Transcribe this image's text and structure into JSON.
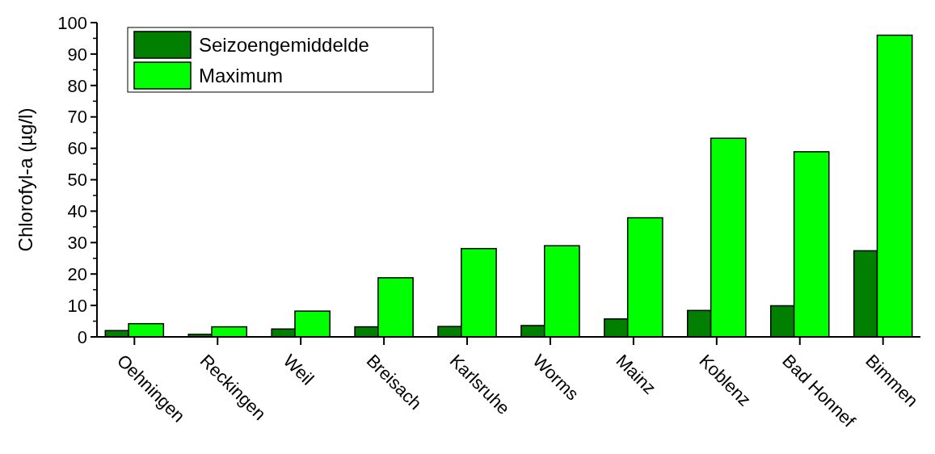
{
  "chart_data": {
    "type": "bar",
    "ylabel": "Chlorofyl-a (µg/l)",
    "categories": [
      "Oehningen",
      "Reckingen",
      "Weil",
      "Breisach",
      "Karlsruhe",
      "Worms",
      "Mainz",
      "Koblenz",
      "Bad Honnef",
      "Bimmen"
    ],
    "series": [
      {
        "name": "Seizoengemiddelde",
        "color": "#007f00",
        "values": [
          2.0,
          0.8,
          2.5,
          3.2,
          3.3,
          3.6,
          5.7,
          8.4,
          9.9,
          27.4
        ]
      },
      {
        "name": "Maximum",
        "color": "#00ff00",
        "values": [
          4.2,
          3.2,
          8.2,
          18.8,
          28.1,
          29.0,
          37.9,
          63.2,
          58.9,
          96.0
        ]
      }
    ],
    "ylim": [
      0,
      100
    ],
    "yticks": [
      0,
      10,
      20,
      30,
      40,
      50,
      60,
      70,
      80,
      90,
      100
    ],
    "grid": false,
    "legend": "top left"
  }
}
